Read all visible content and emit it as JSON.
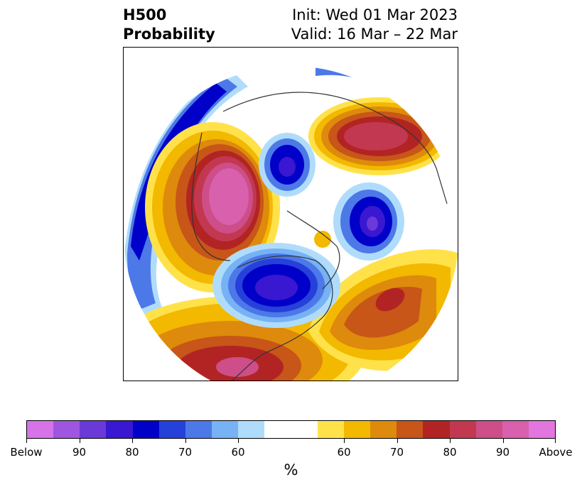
{
  "title": {
    "left_line1": "H500",
    "left_line2": "Probability",
    "right_line1": "Init: Wed 01 Mar 2023",
    "right_line2": "Valid: 16 Mar – 22 Mar"
  },
  "colorbar": {
    "colors": [
      "#d673e8",
      "#9e56e0",
      "#6b39d8",
      "#3a17d0",
      "#0000c8",
      "#2640da",
      "#4c78e8",
      "#76b2f4",
      "#b0dcfc",
      "#ffffff",
      "#ffffff",
      "#ffe24a",
      "#f3b800",
      "#de8a0c",
      "#c75618",
      "#b22424",
      "#c23850",
      "#cd4e88",
      "#d860ac",
      "#e276de"
    ],
    "tick_labels": [
      "Below",
      "90",
      "80",
      "70",
      "60",
      "60",
      "70",
      "80",
      "90",
      "Above"
    ],
    "unit": "%"
  }
}
